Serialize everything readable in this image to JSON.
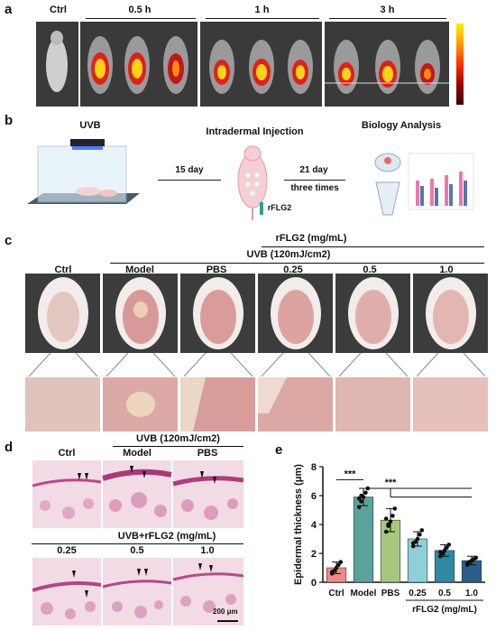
{
  "panels": {
    "a": {
      "label": "a",
      "groups": [
        "Ctrl",
        "0.5 h",
        "1 h",
        "3 h"
      ]
    },
    "b": {
      "label": "b",
      "uvb": "UVB",
      "injection": "Intradermal Injection",
      "analysis": "Biology Analysis",
      "day15": "15 day",
      "day21": "21 day",
      "times": "three times",
      "agent": "rFLG2"
    },
    "c": {
      "label": "c",
      "dose_header": "rFLG2 (mg/mL)",
      "uvb_header": "UVB (120mJ/cm2)",
      "groups": [
        "Ctrl",
        "Model",
        "PBS",
        "0.25",
        "0.5",
        "1.0"
      ]
    },
    "d": {
      "label": "d",
      "uvb_header": "UVB (120mJ/cm2)",
      "top_groups": [
        "Ctrl",
        "Model",
        "PBS"
      ],
      "bottom_header": "UVB+rFLG2 (mg/mL)",
      "bottom_groups": [
        "0.25",
        "0.5",
        "1.0"
      ],
      "scale_bar": "200 μm"
    },
    "e": {
      "label": "e"
    }
  },
  "chart_data": {
    "type": "bar",
    "ylabel": "Epidermal thickness (μm)",
    "ylim": [
      0,
      8
    ],
    "yticks": [
      "0",
      "2",
      "4",
      "6",
      "8"
    ],
    "categories": [
      "Ctrl",
      "Model",
      "PBS",
      "0.25",
      "0.5",
      "1.0"
    ],
    "group_label": "rFLG2 (mg/mL)",
    "values": [
      1.0,
      5.9,
      4.3,
      3.0,
      2.2,
      1.5
    ],
    "errors": [
      0.4,
      0.6,
      0.8,
      0.5,
      0.4,
      0.3
    ],
    "points": [
      [
        0.6,
        0.8,
        1.0,
        1.2,
        1.4,
        0.7
      ],
      [
        5.2,
        5.6,
        5.9,
        6.2,
        6.5,
        5.8,
        6.0
      ],
      [
        3.5,
        3.9,
        4.2,
        4.6,
        5.1,
        4.4,
        4.0
      ],
      [
        2.5,
        2.8,
        3.0,
        3.3,
        3.6,
        2.7
      ],
      [
        1.8,
        2.0,
        2.2,
        2.4,
        2.6,
        2.1
      ],
      [
        1.2,
        1.4,
        1.5,
        1.6,
        1.7,
        1.3
      ]
    ],
    "colors": [
      "#f08a8a",
      "#5aa39a",
      "#a7c77f",
      "#8fd0d8",
      "#2f8aa3",
      "#2a5f8a"
    ],
    "annotations": [
      "***",
      "***"
    ]
  }
}
